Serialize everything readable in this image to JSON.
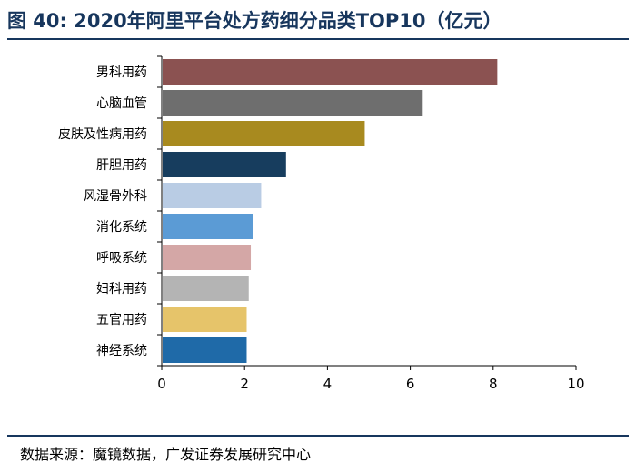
{
  "figure": {
    "title": "图 40: 2020年阿里平台处方药细分品类TOP10（亿元）",
    "source": "数据来源：魔镜数据，广发证券发展研究中心"
  },
  "chart_data": {
    "type": "bar",
    "orientation": "horizontal",
    "title": "图 40: 2020年阿里平台处方药细分品类TOP10（亿元）",
    "categories": [
      "男科用药",
      "心脑血管",
      "皮肤及性病用药",
      "肝胆用药",
      "风湿骨外科",
      "消化系统",
      "呼吸系统",
      "妇科用药",
      "五官用药",
      "神经系统"
    ],
    "values": [
      8.1,
      6.3,
      4.9,
      3.0,
      2.4,
      2.2,
      2.15,
      2.1,
      2.05,
      2.05
    ],
    "colors": [
      "#8b5251",
      "#6e6e6e",
      "#a88a1f",
      "#173d5e",
      "#b9cce4",
      "#5b9bd5",
      "#d4a7a6",
      "#b4b4b4",
      "#e6c46a",
      "#1f6aa8"
    ],
    "xlim": [
      0,
      10
    ],
    "xticks": [
      "0",
      "2",
      "4",
      "6",
      "8",
      "10"
    ],
    "xlabel": "",
    "ylabel": "",
    "grid": false,
    "legend": "none"
  }
}
